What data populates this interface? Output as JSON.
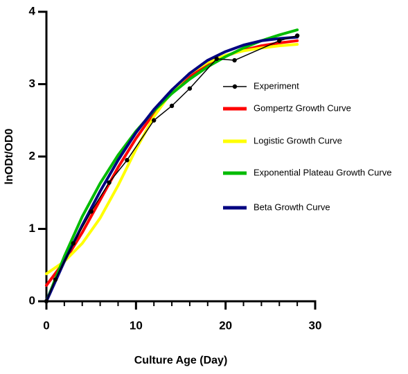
{
  "chart_data": {
    "type": "line",
    "xlabel": "Culture Age (Day)",
    "ylabel": "lnODt/OD0",
    "xlim": [
      0,
      30
    ],
    "xticks": [
      0,
      10,
      20,
      30
    ],
    "xminorticks": [
      2,
      4,
      6,
      8,
      12,
      14,
      16,
      18,
      22,
      24,
      26,
      28
    ],
    "ylim": [
      0,
      4
    ],
    "yticks": [
      0,
      1,
      2,
      3,
      4
    ],
    "legend": "right",
    "series": [
      {
        "name": "Experiment",
        "color": "#000000",
        "marker": true,
        "x": [
          0,
          1,
          3,
          5,
          7,
          9,
          12,
          14,
          16,
          19,
          21,
          26,
          28
        ],
        "values": [
          0,
          0.3,
          0.8,
          1.24,
          1.64,
          1.95,
          2.5,
          2.7,
          2.94,
          3.35,
          3.33,
          3.6,
          3.67
        ]
      },
      {
        "name": "Gompertz Growth Curve",
        "color": "#ff0000",
        "marker": false,
        "x": [
          0,
          2,
          4,
          6,
          8,
          10,
          12,
          14,
          16,
          18,
          20,
          22,
          24,
          26,
          28
        ],
        "values": [
          0.22,
          0.55,
          0.95,
          1.4,
          1.85,
          2.25,
          2.6,
          2.88,
          3.1,
          3.27,
          3.39,
          3.47,
          3.53,
          3.57,
          3.6
        ]
      },
      {
        "name": "Logistic Growth Curve",
        "color": "#ffff00",
        "marker": false,
        "x": [
          0,
          2,
          4,
          6,
          8,
          10,
          12,
          14,
          16,
          18,
          20,
          22,
          24,
          26,
          28
        ],
        "values": [
          0.38,
          0.55,
          0.8,
          1.15,
          1.6,
          2.1,
          2.55,
          2.9,
          3.15,
          3.3,
          3.4,
          3.46,
          3.5,
          3.53,
          3.55
        ]
      },
      {
        "name": "Exponential Plateau Growth Curve",
        "color": "#00bb00",
        "marker": false,
        "x": [
          0,
          2,
          4,
          6,
          8,
          10,
          12,
          14,
          16,
          18,
          20,
          22,
          24,
          26,
          28
        ],
        "values": [
          0,
          0.62,
          1.17,
          1.63,
          2.02,
          2.35,
          2.63,
          2.87,
          3.07,
          3.24,
          3.38,
          3.5,
          3.6,
          3.68,
          3.75
        ]
      },
      {
        "name": "Beta Growth Curve",
        "color": "#000080",
        "marker": false,
        "x": [
          0,
          2,
          4,
          6,
          8,
          10,
          12,
          14,
          16,
          18,
          20,
          22,
          24,
          26,
          28
        ],
        "values": [
          0,
          0.55,
          1.05,
          1.52,
          1.95,
          2.33,
          2.65,
          2.92,
          3.15,
          3.33,
          3.45,
          3.54,
          3.6,
          3.63,
          3.65
        ]
      }
    ]
  }
}
